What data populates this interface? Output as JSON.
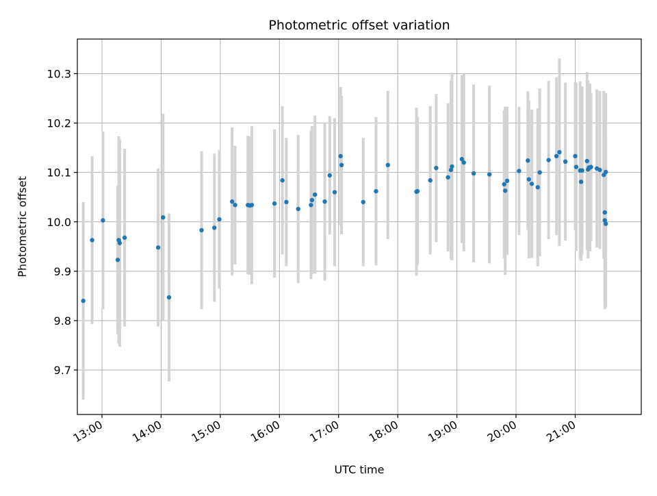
{
  "chart_data": {
    "type": "scatter",
    "title": "Photometric offset variation",
    "xlabel": "UTC time",
    "ylabel": "Photometric offset",
    "xlim": [
      "12:35",
      "22:07"
    ],
    "ylim": [
      9.61,
      10.37
    ],
    "grid": true,
    "x_ticks": [
      "13:00",
      "14:00",
      "15:00",
      "16:00",
      "17:00",
      "18:00",
      "19:00",
      "20:00",
      "21:00"
    ],
    "y_ticks": [
      9.7,
      9.8,
      9.9,
      10.0,
      10.1,
      10.2,
      10.3
    ],
    "y_tick_labels": [
      "9.7",
      "9.8",
      "9.9",
      "10.0",
      "10.1",
      "10.2",
      "10.3"
    ],
    "colors": {
      "point": "#1f77b4",
      "errorbar": "#d3d3d3",
      "grid": "#b0b0b0"
    },
    "series": [
      {
        "x": [
          "12:41",
          "12:50",
          "13:01",
          "13:16",
          "13:17",
          "13:18",
          "13:23",
          "13:57",
          "14:02",
          "14:08",
          "14:41",
          "14:54",
          "14:59",
          "15:12",
          "15:15",
          "15:28",
          "15:30",
          "15:32",
          "15:55",
          "16:03",
          "16:07",
          "16:19",
          "16:32",
          "16:33",
          "16:36",
          "16:46",
          "16:51",
          "16:56",
          "17:02",
          "17:03",
          "17:25",
          "17:38",
          "17:50",
          "18:19",
          "18:20",
          "18:33",
          "18:39",
          "18:51",
          "18:54",
          "18:55",
          "19:05",
          "19:07",
          "19:17",
          "19:33",
          "19:48",
          "19:49",
          "19:51",
          "20:03",
          "20:12",
          "20:13",
          "20:16",
          "20:22",
          "20:24",
          "20:33",
          "20:41",
          "20:44",
          "20:50",
          "21:00",
          "21:01",
          "21:05",
          "21:06",
          "21:07",
          "21:12",
          "21:13",
          "21:14",
          "21:15",
          "21:16",
          "21:22",
          "21:25",
          "21:29",
          "21:30",
          "21:30",
          "21:31",
          "21:31"
        ],
        "y": [
          9.84,
          9.963,
          10.003,
          9.923,
          9.963,
          9.957,
          9.968,
          9.948,
          10.009,
          9.847,
          9.983,
          9.988,
          10.005,
          10.041,
          10.034,
          10.034,
          10.033,
          10.034,
          10.037,
          10.084,
          10.04,
          10.026,
          10.034,
          10.044,
          10.055,
          10.041,
          10.094,
          10.06,
          10.133,
          10.115,
          10.04,
          10.062,
          10.115,
          10.061,
          10.062,
          10.084,
          10.109,
          10.09,
          10.105,
          10.112,
          10.127,
          10.12,
          10.098,
          10.096,
          10.076,
          10.063,
          10.083,
          10.103,
          10.124,
          10.086,
          10.077,
          10.07,
          10.1,
          10.125,
          10.133,
          10.141,
          10.122,
          10.133,
          10.111,
          10.104,
          10.081,
          10.104,
          10.123,
          10.106,
          10.11,
          10.11,
          10.111,
          10.108,
          10.105,
          10.095,
          10.019,
          10.003,
          9.996,
          10.101
        ],
        "y_err": [
          0.2,
          0.17,
          0.18,
          0.15,
          0.21,
          0.21,
          0.18,
          0.16,
          0.21,
          0.17,
          0.16,
          0.15,
          0.14,
          0.15,
          0.12,
          0.14,
          0.14,
          0.16,
          0.15,
          0.15,
          0.13,
          0.15,
          0.15,
          0.15,
          0.16,
          0.16,
          0.12,
          0.15,
          0.14,
          0.14,
          0.13,
          0.15,
          0.15,
          0.17,
          0.15,
          0.15,
          0.15,
          0.15,
          0.18,
          0.19,
          0.17,
          0.18,
          0.18,
          0.18,
          0.15,
          0.17,
          0.15,
          0.13,
          0.14,
          0.16,
          0.15,
          0.16,
          0.17,
          0.16,
          0.16,
          0.19,
          0.16,
          0.15,
          0.17,
          0.18,
          0.16,
          0.17,
          0.18,
          0.18,
          0.16,
          0.17,
          0.15,
          0.16,
          0.16,
          0.17,
          0.18,
          0.18,
          0.17,
          0.16
        ]
      }
    ]
  }
}
